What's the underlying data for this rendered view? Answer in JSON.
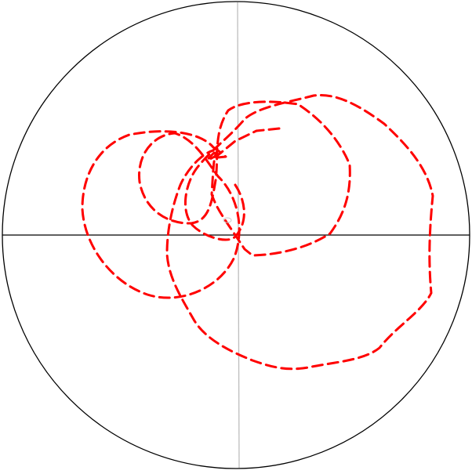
{
  "figure": {
    "kind": "polar trajectory plot",
    "colors": {
      "trace": "#ff0000",
      "boundary": "#000000",
      "horizontal_axis": "#000000",
      "vertical_axis": "#bdbdbd",
      "background": "#ffffff"
    },
    "trace_style": "dashed"
  }
}
